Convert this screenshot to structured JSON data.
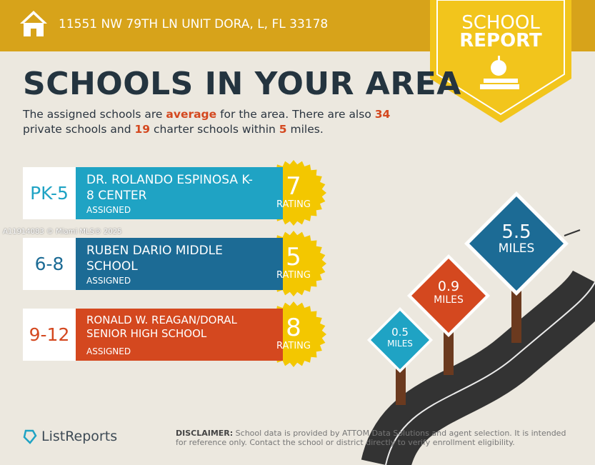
{
  "header": {
    "address": "11551 NW 79TH LN UNIT DORA, L, FL 33178"
  },
  "badge": {
    "line1": "SCHOOL",
    "line2": "REPORT"
  },
  "title": "SCHOOLS IN YOUR AREA",
  "intro": [
    "The assigned schools are ",
    "average",
    " for the area. There are also ",
    34,
    " private schools and ",
    19,
    " charter schools within ",
    5,
    " miles."
  ],
  "schools": [
    {
      "grade": "PK-5",
      "name": "DR. ROLANDO ESPINOSA K-8 CENTER",
      "status": "ASSIGNED",
      "rating": 7,
      "rating_label": "RATING"
    },
    {
      "grade": "6-8",
      "name": "RUBEN DARIO MIDDLE SCHOOL",
      "status": "ASSIGNED",
      "rating": 5,
      "rating_label": "RATING"
    },
    {
      "grade": "9-12",
      "name": "RONALD W. REAGAN/DORAL SENIOR HIGH SCHOOL",
      "status": "ASSIGNED",
      "rating": 8,
      "rating_label": "RATING"
    }
  ],
  "signs": [
    {
      "distance": 0.5,
      "unit": "MILES"
    },
    {
      "distance": 0.9,
      "unit": "MILES"
    },
    {
      "distance": 5.5,
      "unit": "MILES"
    }
  ],
  "watermark": "A11914083 © Miami MLS® 2025",
  "footer": {
    "brand": "ListReports",
    "disclaimer_label": "DISCLAIMER:",
    "disclaimer": "School data is provided by ATTOM Data Solutions and agent selection. It is intended for reference only. Contact the school or district directly to verify enrollment eligibility."
  }
}
